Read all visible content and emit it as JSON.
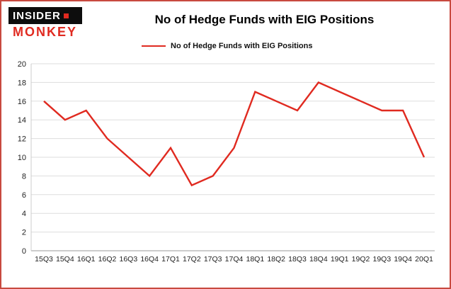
{
  "logo": {
    "line1": "INSIDER",
    "line2": "MONKEY"
  },
  "title": "No of Hedge Funds with EIG Positions",
  "legend": {
    "label": "No of Hedge Funds with EIG Positions"
  },
  "colors": {
    "line": "#e02a20",
    "frame_border": "#c84a3f",
    "grid": "#dddddd",
    "axis": "#999999"
  },
  "chart_data": {
    "type": "line",
    "title": "No of Hedge Funds with EIG Positions",
    "categories": [
      "15Q3",
      "15Q4",
      "16Q1",
      "16Q2",
      "16Q3",
      "16Q4",
      "17Q1",
      "17Q2",
      "17Q3",
      "17Q4",
      "18Q1",
      "18Q2",
      "18Q3",
      "18Q4",
      "19Q1",
      "19Q2",
      "19Q3",
      "19Q4",
      "20Q1"
    ],
    "values": [
      16,
      14,
      15,
      12,
      10,
      8,
      11,
      7,
      8,
      11,
      17,
      16,
      15,
      18,
      17,
      16,
      15,
      15,
      10
    ],
    "xlabel": "",
    "ylabel": "",
    "ylim": [
      0,
      20
    ],
    "ytick_step": 2,
    "grid": true,
    "legend_position": "top-left",
    "series_name": "No of Hedge Funds with EIG Positions"
  }
}
